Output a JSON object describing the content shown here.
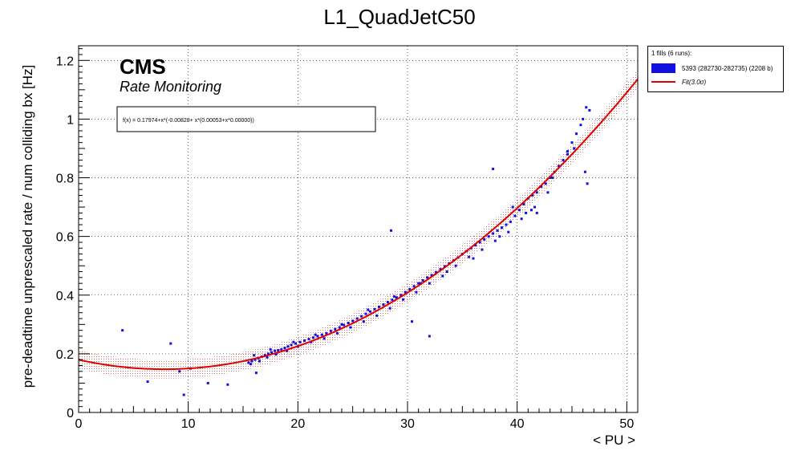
{
  "colors": {
    "data": "#1010e0",
    "fit": "#e00000",
    "band": "#c04040"
  },
  "legend": {
    "header": "1 fills (6 runs):",
    "items": [
      {
        "label": "5393 (282730-282735) (2208 b)",
        "type": "box"
      },
      {
        "label": "Fit(3.0σ)",
        "type": "line"
      }
    ]
  },
  "chart_data": {
    "type": "scatter",
    "title": "L1_QuadJetC50",
    "xlabel": "< PU >",
    "ylabel": "pre-deadtime unprescaled rate / num colliding bx [Hz]",
    "xlim": [
      0,
      51
    ],
    "ylim": [
      0,
      1.25
    ],
    "xticks": [
      0,
      10,
      20,
      30,
      40,
      50
    ],
    "yticks": [
      0,
      0.2,
      0.4,
      0.6,
      0.8,
      1,
      1.2
    ],
    "ytick_labels": [
      "0",
      "0.2",
      "0.4",
      "0.6",
      "0.8",
      "1",
      "1.2"
    ],
    "grid": true,
    "legend_position": "outside-right-top",
    "cms_label": "CMS",
    "cms_sublabel": "Rate Monitoring",
    "fit_formula": "f(x) = 0.17974+x*(-0.00828+ x*(0.00053+x*0.00000))",
    "fit_coefficients": [
      0.17974,
      -0.00828,
      0.00053,
      0.0
    ],
    "fit_band_sigma": 3.0,
    "fit_band_halfwidth": 0.032,
    "series": [
      {
        "name": "5393 (282730-282735) (2208 b)",
        "points": [
          [
            4.0,
            0.28
          ],
          [
            6.3,
            0.105
          ],
          [
            8.4,
            0.235
          ],
          [
            9.2,
            0.14
          ],
          [
            9.6,
            0.06
          ],
          [
            10.2,
            0.15
          ],
          [
            11.8,
            0.1
          ],
          [
            13.6,
            0.095
          ],
          [
            15.5,
            0.17
          ],
          [
            15.8,
            0.175
          ],
          [
            16.1,
            0.18
          ],
          [
            16.4,
            0.185
          ],
          [
            16.7,
            0.19
          ],
          [
            17.0,
            0.195
          ],
          [
            17.3,
            0.2
          ],
          [
            17.6,
            0.205
          ],
          [
            17.9,
            0.21
          ],
          [
            18.2,
            0.212
          ],
          [
            18.5,
            0.215
          ],
          [
            18.8,
            0.22
          ],
          [
            19.1,
            0.225
          ],
          [
            19.4,
            0.23
          ],
          [
            19.8,
            0.235
          ],
          [
            20.2,
            0.24
          ],
          [
            20.6,
            0.245
          ],
          [
            21.0,
            0.25
          ],
          [
            21.4,
            0.255
          ],
          [
            21.8,
            0.26
          ],
          [
            22.2,
            0.265
          ],
          [
            22.6,
            0.27
          ],
          [
            23.0,
            0.278
          ],
          [
            23.4,
            0.284
          ],
          [
            23.8,
            0.29
          ],
          [
            24.2,
            0.298
          ],
          [
            24.6,
            0.305
          ],
          [
            25.0,
            0.312
          ],
          [
            25.4,
            0.32
          ],
          [
            25.8,
            0.328
          ],
          [
            26.2,
            0.336
          ],
          [
            26.6,
            0.344
          ],
          [
            27.0,
            0.352
          ],
          [
            27.4,
            0.36
          ],
          [
            27.8,
            0.368
          ],
          [
            28.2,
            0.376
          ],
          [
            28.6,
            0.384
          ],
          [
            29.0,
            0.392
          ],
          [
            29.4,
            0.4
          ],
          [
            29.8,
            0.41
          ],
          [
            30.2,
            0.42
          ],
          [
            30.6,
            0.43
          ],
          [
            31.0,
            0.44
          ],
          [
            31.4,
            0.45
          ],
          [
            31.8,
            0.46
          ],
          [
            32.2,
            0.468
          ],
          [
            32.6,
            0.478
          ],
          [
            33.0,
            0.488
          ],
          [
            33.4,
            0.498
          ],
          [
            33.8,
            0.508
          ],
          [
            34.2,
            0.518
          ],
          [
            34.6,
            0.528
          ],
          [
            35.0,
            0.54
          ],
          [
            35.4,
            0.55
          ],
          [
            35.8,
            0.56
          ],
          [
            36.2,
            0.57
          ],
          [
            36.6,
            0.58
          ],
          [
            37.0,
            0.59
          ],
          [
            37.4,
            0.6
          ],
          [
            37.8,
            0.61
          ],
          [
            38.2,
            0.62
          ],
          [
            38.6,
            0.63
          ],
          [
            39.0,
            0.64
          ],
          [
            39.4,
            0.65
          ],
          [
            39.8,
            0.67
          ],
          [
            40.2,
            0.69
          ],
          [
            40.6,
            0.71
          ],
          [
            41.0,
            0.73
          ],
          [
            41.4,
            0.74
          ],
          [
            41.8,
            0.75
          ],
          [
            42.2,
            0.77
          ],
          [
            42.6,
            0.78
          ],
          [
            43.0,
            0.8
          ],
          [
            43.4,
            0.82
          ],
          [
            43.8,
            0.84
          ],
          [
            44.2,
            0.86
          ],
          [
            44.6,
            0.89
          ],
          [
            45.0,
            0.92
          ],
          [
            45.4,
            0.95
          ],
          [
            45.8,
            0.98
          ],
          [
            46.0,
            1.0
          ],
          [
            15.7,
            0.165
          ],
          [
            16.5,
            0.175
          ],
          [
            17.2,
            0.188
          ],
          [
            18.0,
            0.198
          ],
          [
            19.0,
            0.21
          ],
          [
            20.0,
            0.225
          ],
          [
            21.2,
            0.24
          ],
          [
            22.4,
            0.252
          ],
          [
            23.6,
            0.27
          ],
          [
            24.8,
            0.29
          ],
          [
            26.0,
            0.31
          ],
          [
            27.2,
            0.33
          ],
          [
            28.4,
            0.355
          ],
          [
            29.6,
            0.385
          ],
          [
            30.8,
            0.41
          ],
          [
            32.0,
            0.44
          ],
          [
            33.2,
            0.465
          ],
          [
            34.4,
            0.5
          ],
          [
            35.6,
            0.53
          ],
          [
            36.8,
            0.555
          ],
          [
            38.0,
            0.585
          ],
          [
            39.2,
            0.615
          ],
          [
            40.4,
            0.66
          ],
          [
            41.6,
            0.7
          ],
          [
            42.8,
            0.75
          ],
          [
            16.0,
            0.195
          ],
          [
            17.5,
            0.215
          ],
          [
            19.6,
            0.24
          ],
          [
            21.6,
            0.265
          ],
          [
            24.0,
            0.3
          ],
          [
            26.4,
            0.35
          ],
          [
            28.8,
            0.395
          ],
          [
            31.2,
            0.44
          ],
          [
            33.6,
            0.48
          ],
          [
            36.0,
            0.525
          ],
          [
            38.4,
            0.6
          ],
          [
            40.8,
            0.68
          ],
          [
            43.2,
            0.8
          ],
          [
            45.2,
            0.9
          ],
          [
            16.2,
            0.135
          ],
          [
            28.5,
            0.62
          ],
          [
            30.4,
            0.31
          ],
          [
            32.0,
            0.26
          ],
          [
            37.8,
            0.83
          ],
          [
            39.6,
            0.7
          ],
          [
            41.3,
            0.69
          ],
          [
            41.8,
            0.68
          ],
          [
            44.6,
            0.88
          ],
          [
            46.2,
            0.82
          ],
          [
            46.4,
            0.78
          ],
          [
            46.3,
            1.04
          ],
          [
            46.6,
            1.03
          ]
        ]
      },
      {
        "name": "Fit(3.0σ)",
        "kind": "fit_curve"
      }
    ]
  }
}
